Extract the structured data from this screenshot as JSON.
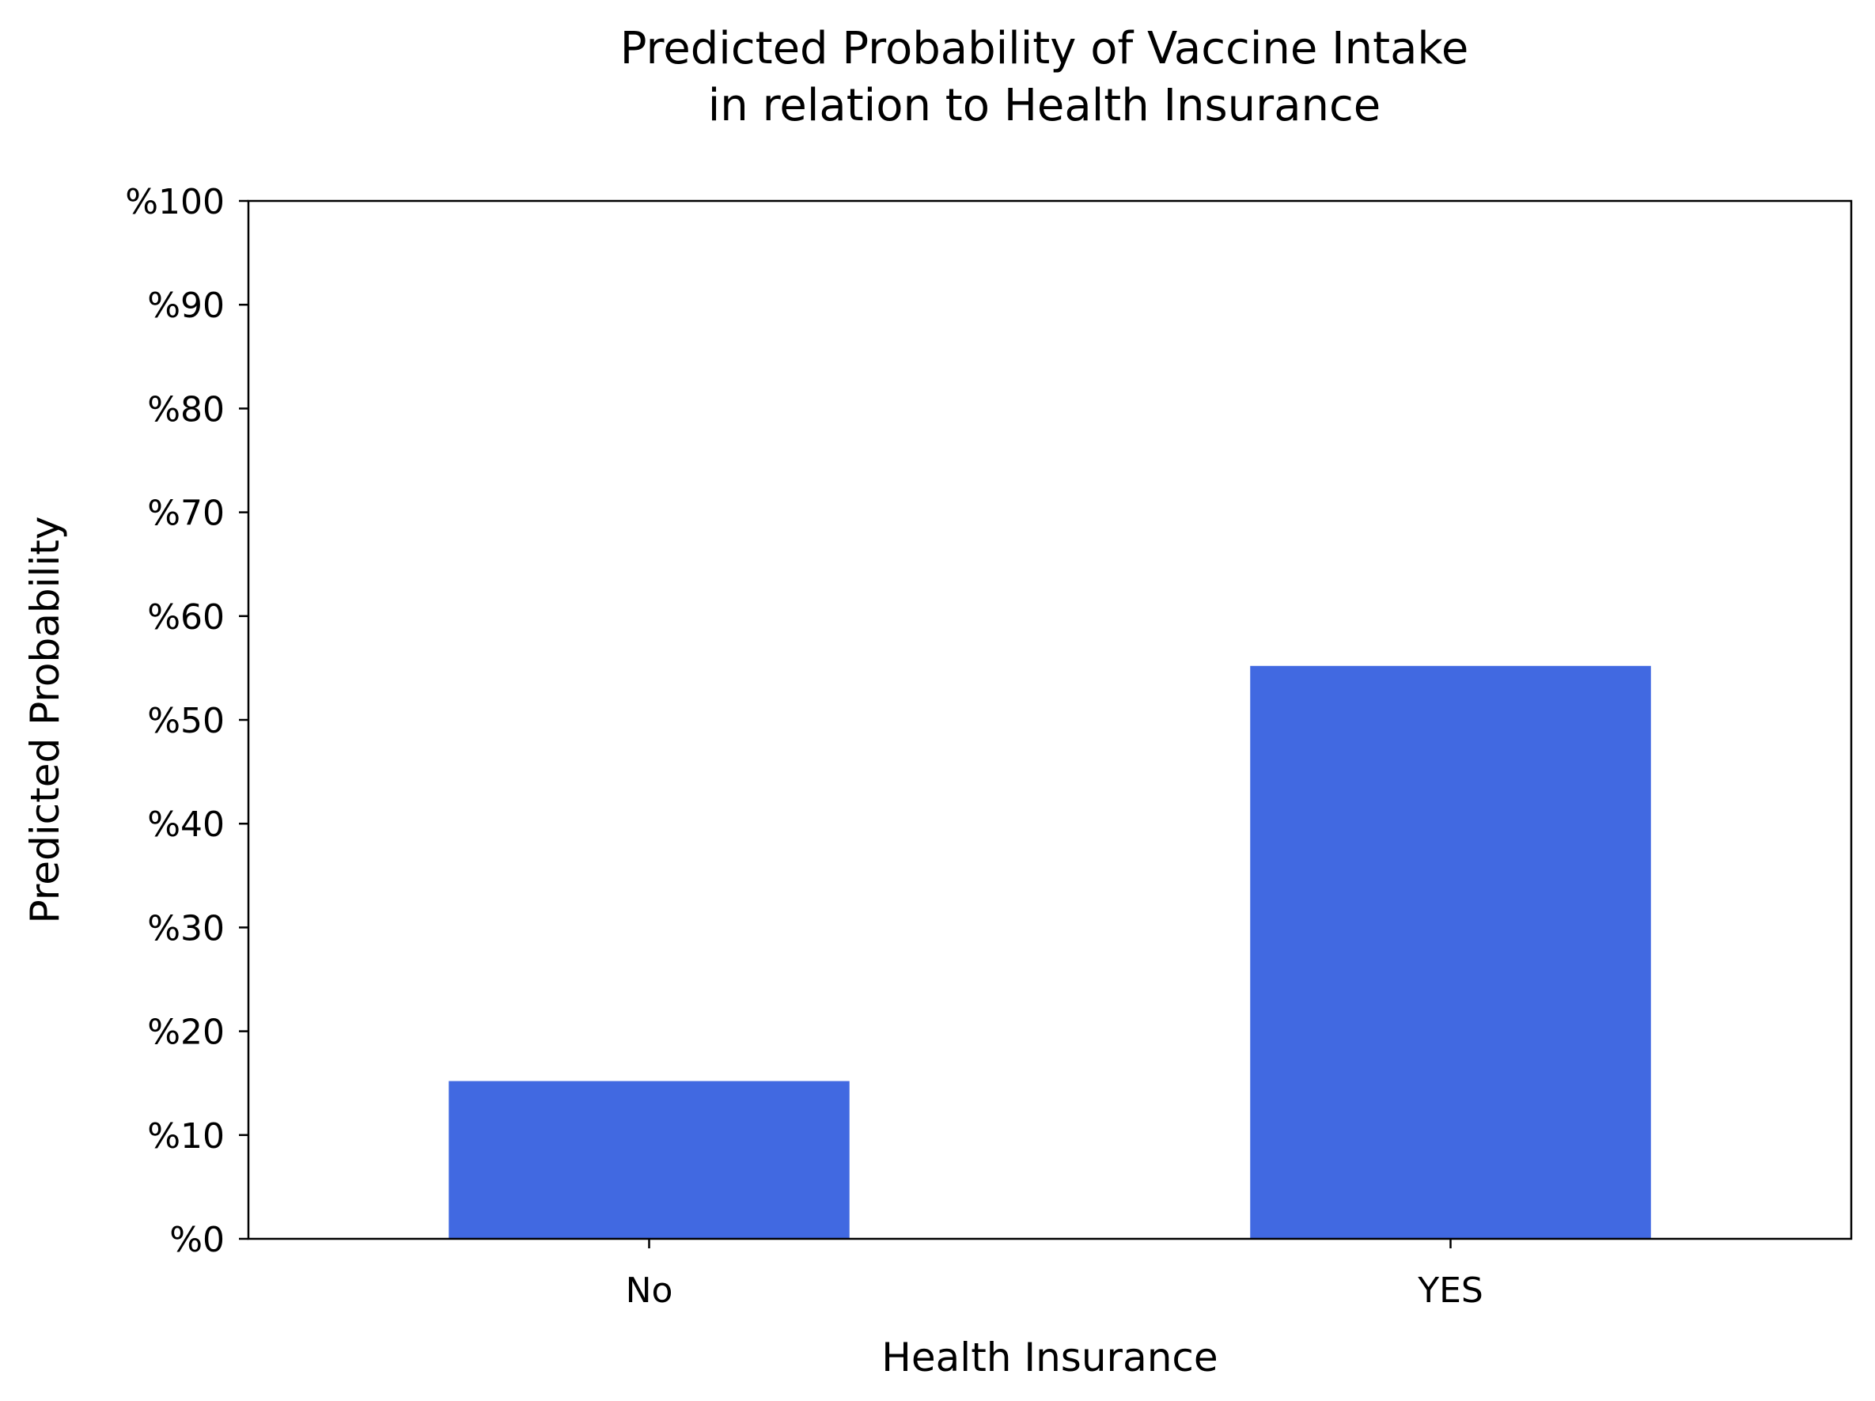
{
  "chart_data": {
    "type": "bar",
    "title_lines": [
      "Predicted Probability of Vaccine Intake",
      "in relation to Health Insurance"
    ],
    "xlabel": "Health Insurance",
    "ylabel": "Predicted Probability",
    "categories": [
      "No",
      "YES"
    ],
    "values": [
      15.2,
      55.2
    ],
    "ylim": [
      0,
      100
    ],
    "y_ticks": [
      0,
      10,
      20,
      30,
      40,
      50,
      60,
      70,
      80,
      90,
      100
    ],
    "y_tick_labels": [
      "%0",
      "%10",
      "%20",
      "%30",
      "%40",
      "%50",
      "%60",
      "%70",
      "%80",
      "%90",
      "%100"
    ],
    "bar_color": "#4169e1",
    "grid": false,
    "legend": "none"
  }
}
